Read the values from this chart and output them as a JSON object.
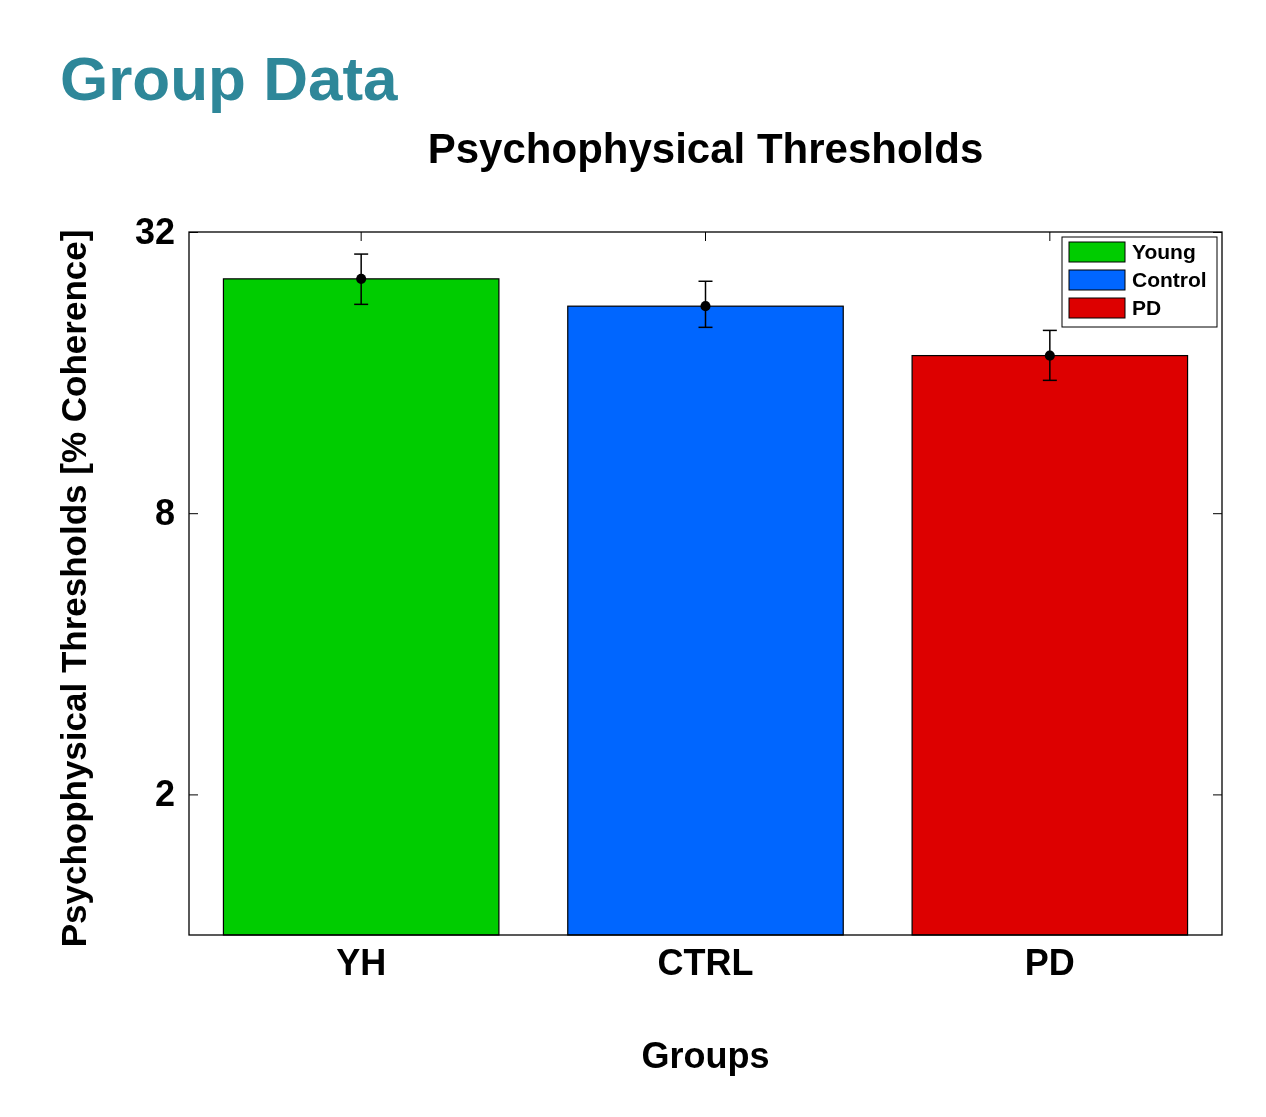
{
  "chart_data": {
    "type": "bar",
    "title": "Group Data",
    "subtitle": "Psychophysical Thresholds",
    "xlabel": "Groups",
    "ylabel": "Psychophysical Thresholds [% Coherence]",
    "categories": [
      "YH",
      "CTRL",
      "PD"
    ],
    "series": [
      {
        "name": "Young",
        "color": "#00cc00",
        "values": [
          25.4,
          null,
          null
        ]
      },
      {
        "name": "Control",
        "color": "#0066ff",
        "values": [
          null,
          22.2,
          null
        ]
      },
      {
        "name": "PD",
        "color": "#dd0000",
        "values": [
          null,
          null,
          17.4
        ]
      },
      {
        "type": "scatter",
        "color": "#000000",
        "x": [
          "YH",
          "CTRL",
          "PD"
        ],
        "values": [
          25.4,
          22.2,
          17.4
        ],
        "errors": [
          [
            22.4,
            28.7
          ],
          [
            20.0,
            25.1
          ],
          [
            15.4,
            19.7
          ]
        ]
      }
    ],
    "stacked": true,
    "log": true,
    "ylim": [
      1,
      32
    ],
    "yticks": [
      2,
      8,
      32
    ],
    "grid": false,
    "legend": "top right",
    "marker": "circle"
  }
}
